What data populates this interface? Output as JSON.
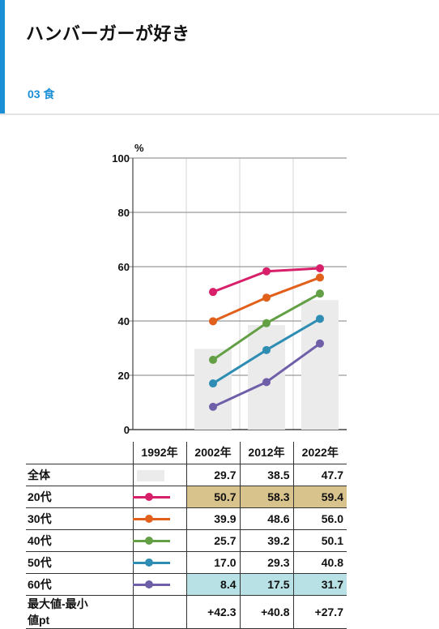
{
  "header": {
    "title": "ハンバーガーが好き",
    "category": "03 食"
  },
  "chart_data": {
    "type": "line",
    "ylabel": "%",
    "ylim": [
      0,
      100
    ],
    "yticks": [
      0,
      20,
      40,
      60,
      80,
      100
    ],
    "categories": [
      "1992年",
      "2002年",
      "2012年",
      "2022年"
    ],
    "bars": {
      "name": "全体",
      "values": [
        null,
        29.7,
        38.5,
        47.7
      ]
    },
    "series": [
      {
        "name": "20代",
        "color": "#d8206a",
        "values": [
          null,
          50.7,
          58.3,
          59.4
        ]
      },
      {
        "name": "30代",
        "color": "#e0601c",
        "values": [
          null,
          39.9,
          48.6,
          56.0
        ]
      },
      {
        "name": "40代",
        "color": "#63a045",
        "values": [
          null,
          25.7,
          39.2,
          50.1
        ]
      },
      {
        "name": "50代",
        "color": "#2f8db4",
        "values": [
          null,
          17.0,
          29.3,
          40.8
        ]
      },
      {
        "name": "60代",
        "color": "#6f5ea8",
        "values": [
          null,
          8.4,
          17.5,
          31.7
        ]
      }
    ],
    "bar_color": "#ebebeb",
    "grid": true
  },
  "table": {
    "columns": [
      "1992年",
      "2002年",
      "2012年",
      "2022年"
    ],
    "rows": [
      {
        "label": "全体",
        "legend": "bar",
        "cells": [
          "",
          "29.7",
          "38.5",
          "47.7"
        ]
      },
      {
        "label": "20代",
        "legend": "line",
        "color": "#d8206a",
        "cells": [
          "",
          "50.7",
          "58.3",
          "59.4"
        ],
        "highlight": "max"
      },
      {
        "label": "30代",
        "legend": "line",
        "color": "#e0601c",
        "cells": [
          "",
          "39.9",
          "48.6",
          "56.0"
        ]
      },
      {
        "label": "40代",
        "legend": "line",
        "color": "#63a045",
        "cells": [
          "",
          "25.7",
          "39.2",
          "50.1"
        ]
      },
      {
        "label": "50代",
        "legend": "line",
        "color": "#2f8db4",
        "cells": [
          "",
          "17.0",
          "29.3",
          "40.8"
        ]
      },
      {
        "label": "60代",
        "legend": "line",
        "color": "#6f5ea8",
        "cells": [
          "",
          "8.4",
          "17.5",
          "31.7"
        ],
        "highlight": "min"
      },
      {
        "label": "最大値-最小値pt",
        "legend": "none",
        "cells": [
          "",
          "+42.3",
          "+40.8",
          "+27.7"
        ]
      }
    ],
    "max_color": "#d9c38d",
    "min_color": "#b8e1e6"
  }
}
